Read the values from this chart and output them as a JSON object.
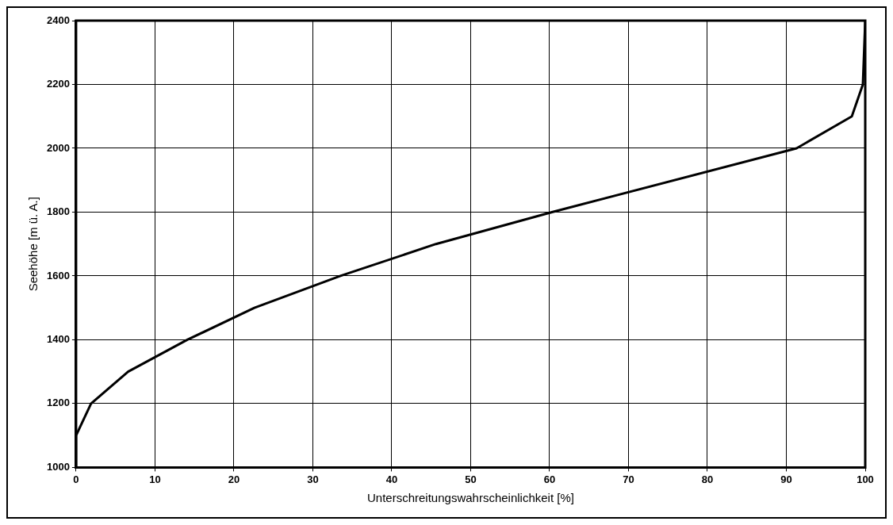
{
  "chart_data": {
    "type": "line",
    "xlabel": "Unterschreitungswahrscheinlichkeit [%]",
    "ylabel": "Seehöhe [m ü. A.]",
    "x": [
      0,
      0,
      1.9,
      6.6,
      14.1,
      22.6,
      33.5,
      45.6,
      60.3,
      91.3,
      98.3,
      99.7,
      100
    ],
    "series": [
      {
        "color": "#000000",
        "values": [
          1000,
          1100,
          1200,
          1300,
          1400,
          1500,
          1600,
          1700,
          1800,
          2000,
          2100,
          2200,
          2400
        ]
      }
    ],
    "xlim": [
      0,
      100
    ],
    "xticks": [
      0,
      10,
      20,
      30,
      40,
      50,
      60,
      70,
      80,
      90,
      100
    ],
    "ylim": [
      1000,
      2400
    ],
    "yticks": [
      1000,
      1200,
      1400,
      1600,
      1800,
      2000,
      2200,
      2400
    ],
    "grid": true,
    "legend": false,
    "marker": "none",
    "line_style": "solid"
  }
}
